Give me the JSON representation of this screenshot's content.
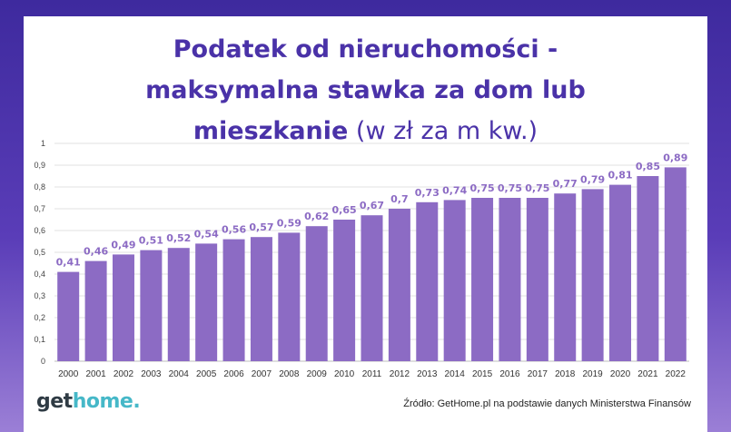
{
  "title": {
    "line1": "Podatek od nieruchomości -",
    "line2": "maksymalna stawka za dom lub",
    "line3_bold": "mieszkanie",
    "line3_normal": " (w zł za m kw.)"
  },
  "logo": {
    "part1": "get",
    "part2": "home",
    "part3": "."
  },
  "source": "Źródło: GetHome.pl na podstawie danych Ministerstwa Finansów",
  "colors": {
    "bar": "#8c6bc4",
    "label": "#8c6bc4",
    "title": "#4a32a8",
    "grid": "#e0e0e0"
  },
  "chart_data": {
    "type": "bar",
    "title": "Podatek od nieruchomości - maksymalna stawka za dom lub mieszkanie (w zł za m kw.)",
    "xlabel": "",
    "ylabel": "",
    "ylim": [
      0,
      1
    ],
    "yticks": [
      "0",
      "0,1",
      "0,2",
      "0,3",
      "0,4",
      "0,5",
      "0,6",
      "0,7",
      "0,8",
      "0,9",
      "1"
    ],
    "ytick_values": [
      0,
      0.1,
      0.2,
      0.3,
      0.4,
      0.5,
      0.6,
      0.7,
      0.8,
      0.9,
      1
    ],
    "grid": true,
    "categories": [
      "2000",
      "2001",
      "2002",
      "2003",
      "2004",
      "2005",
      "2006",
      "2007",
      "2008",
      "2009",
      "2010",
      "2011",
      "2012",
      "2013",
      "2014",
      "2015",
      "2016",
      "2017",
      "2018",
      "2019",
      "2020",
      "2021",
      "2022"
    ],
    "values": [
      0.41,
      0.46,
      0.49,
      0.51,
      0.52,
      0.54,
      0.56,
      0.57,
      0.59,
      0.62,
      0.65,
      0.67,
      0.7,
      0.73,
      0.74,
      0.75,
      0.75,
      0.75,
      0.77,
      0.79,
      0.81,
      0.85,
      0.89
    ],
    "data_labels": [
      "0,41",
      "0,46",
      "0,49",
      "0,51",
      "0,52",
      "0,54",
      "0,56",
      "0,57",
      "0,59",
      "0,62",
      "0,65",
      "0,67",
      "0,7",
      "0,73",
      "0,74",
      "0,75",
      "0,75",
      "0,75",
      "0,77",
      "0,79",
      "0,81",
      "0,85",
      "0,89"
    ]
  }
}
